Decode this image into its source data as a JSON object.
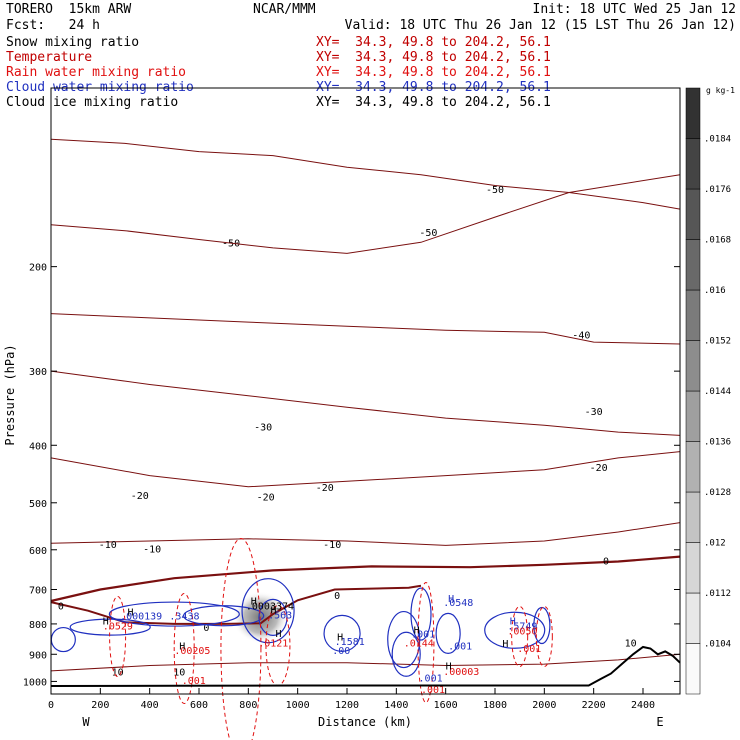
{
  "header": {
    "model": "TORERO  15km ARW",
    "center": "NCAR/MMM",
    "init": "Init: 18 UTC Wed 25 Jan 12",
    "fcst": "Fcst:   24 h",
    "valid": "Valid: 18 UTC Thu 26 Jan 12 (15 LST Thu 26 Jan 12)"
  },
  "legend": [
    {
      "label": "Snow mixing ratio",
      "xy": "",
      "color": "#000000"
    },
    {
      "label": "Temperature",
      "xy": "XY=  34.3, 49.8 to 204.2, 56.1",
      "color": "#c00000"
    },
    {
      "label": "Rain water mixing ratio",
      "xy": "XY=  34.3, 49.8 to 204.2, 56.1",
      "color": "#e01010"
    },
    {
      "label": "Cloud water mixing ratio",
      "xy": "XY=  34.3, 49.8 to 204.2, 56.1",
      "color": "#2030c0"
    },
    {
      "label": "Cloud ice mixing ratio",
      "xy": "XY=  34.3, 49.8 to 204.2, 56.1",
      "color": "#000000"
    }
  ],
  "legend_first_xy": "XY=  34.3, 49.8 to 204.2, 56.1",
  "colors": {
    "temperature": "#7a1010",
    "rain": "#e01010",
    "cloud_water": "#2030c0",
    "terrain": "#000000"
  },
  "chart_data": {
    "type": "cross-section contour",
    "xlabel": "Distance (km)",
    "ylabel": "Pressure (hPa)",
    "x_ticks": [
      0,
      200,
      400,
      600,
      800,
      1000,
      1200,
      1400,
      1600,
      1800,
      2000,
      2200,
      2400
    ],
    "y_ticks": [
      200,
      300,
      400,
      500,
      600,
      700,
      800,
      900,
      1000
    ],
    "xlim": [
      0,
      2550
    ],
    "ylim": [
      1050,
      100
    ],
    "y_scale": "log",
    "x_left_label": "W",
    "x_right_label": "E",
    "colorbar": {
      "unit": "g kg-1",
      "ticks": [
        ".0104",
        ".0112",
        ".012",
        ".0128",
        ".0136",
        ".0144",
        ".0152",
        ".016",
        ".0168",
        ".0176",
        ".0184"
      ]
    },
    "temperature_contours": [
      {
        "label": "-50",
        "points": [
          [
            0,
            122
          ],
          [
            300,
            124
          ],
          [
            600,
            128
          ],
          [
            900,
            130
          ],
          [
            1200,
            136
          ],
          [
            1500,
            140
          ],
          [
            1800,
            146
          ],
          [
            2100,
            150
          ],
          [
            2400,
            156
          ],
          [
            2550,
            160
          ]
        ],
        "label_positions": [
          [
            1800,
            148
          ],
          [
            1530,
            175
          ],
          [
            730,
            182
          ]
        ]
      },
      {
        "label": "-50",
        "points": [
          [
            0,
            170
          ],
          [
            300,
            174
          ],
          [
            600,
            180
          ],
          [
            900,
            186
          ],
          [
            1200,
            190
          ],
          [
            1500,
            182
          ],
          [
            1800,
            165
          ],
          [
            2100,
            150
          ],
          [
            2550,
            140
          ]
        ],
        "label_positions": []
      },
      {
        "label": "-40",
        "points": [
          [
            0,
            240
          ],
          [
            400,
            244
          ],
          [
            800,
            248
          ],
          [
            1200,
            252
          ],
          [
            1600,
            256
          ],
          [
            2000,
            258
          ],
          [
            2200,
            268
          ],
          [
            2550,
            270
          ]
        ],
        "label_positions": [
          [
            2150,
            260
          ]
        ]
      },
      {
        "label": "-30",
        "points": [
          [
            0,
            300
          ],
          [
            400,
            316
          ],
          [
            800,
            330
          ],
          [
            1200,
            345
          ],
          [
            1600,
            360
          ],
          [
            2000,
            370
          ],
          [
            2300,
            380
          ],
          [
            2550,
            385
          ]
        ],
        "label_positions": [
          [
            860,
            372
          ],
          [
            2200,
            350
          ]
        ]
      },
      {
        "label": "-20",
        "points": [
          [
            0,
            420
          ],
          [
            400,
            450
          ],
          [
            800,
            470
          ],
          [
            1200,
            460
          ],
          [
            1600,
            450
          ],
          [
            2000,
            440
          ],
          [
            2300,
            420
          ],
          [
            2550,
            410
          ]
        ],
        "label_positions": [
          [
            360,
            485
          ],
          [
            870,
            488
          ],
          [
            1110,
            470
          ],
          [
            2220,
            435
          ]
        ]
      },
      {
        "label": "-10",
        "points": [
          [
            0,
            585
          ],
          [
            400,
            580
          ],
          [
            800,
            575
          ],
          [
            1200,
            580
          ],
          [
            1600,
            590
          ],
          [
            2000,
            580
          ],
          [
            2300,
            560
          ],
          [
            2550,
            540
          ]
        ],
        "label_positions": [
          [
            230,
            587
          ],
          [
            410,
            597
          ],
          [
            1140,
            587
          ]
        ]
      },
      {
        "label": "0",
        "points": [
          [
            0,
            732
          ],
          [
            200,
            700
          ],
          [
            500,
            670
          ],
          [
            900,
            650
          ],
          [
            1300,
            640
          ],
          [
            1700,
            642
          ],
          [
            2000,
            636
          ],
          [
            2300,
            628
          ],
          [
            2550,
            616
          ]
        ],
        "label_positions": [
          [
            2250,
            625
          ]
        ]
      },
      {
        "label": "10",
        "points": [
          [
            0,
            960
          ],
          [
            400,
            940
          ],
          [
            800,
            930
          ],
          [
            1200,
            930
          ],
          [
            1600,
            940
          ],
          [
            2000,
            935
          ],
          [
            2300,
            920
          ],
          [
            2550,
            900
          ]
        ],
        "label_positions": [
          [
            270,
            963
          ],
          [
            520,
            963
          ],
          [
            2350,
            860
          ]
        ]
      }
    ],
    "freezing_level_label": "0",
    "cloud_water_labels": [
      ".000139",
      ".3438",
      ".563",
      ".0548",
      ".001",
      ".5749",
      ".1581",
      ".001",
      ".001",
      ".00"
    ],
    "rain_labels": [
      ".0529",
      ".00205",
      ".001",
      ".0121",
      ".0144",
      ".00003",
      ".001",
      ".0050",
      ".001"
    ],
    "snow_labels": [
      ".0003374"
    ],
    "max_markers": [
      {
        "text": "H",
        "x": 310,
        "p": 762
      },
      {
        "text": "H",
        "x": 210,
        "p": 790
      },
      {
        "text": "H",
        "x": 520,
        "p": 870
      },
      {
        "text": "H",
        "x": 810,
        "p": 730
      },
      {
        "text": "H",
        "x": 890,
        "p": 757
      },
      {
        "text": "H",
        "x": 910,
        "p": 828
      },
      {
        "text": "H",
        "x": 1160,
        "p": 840
      },
      {
        "text": "H",
        "x": 1470,
        "p": 818
      },
      {
        "text": "H",
        "x": 1610,
        "p": 723
      },
      {
        "text": "H",
        "x": 1860,
        "p": 790
      },
      {
        "text": "H",
        "x": 1830,
        "p": 862
      },
      {
        "text": "H",
        "x": 1600,
        "p": 940
      }
    ]
  }
}
